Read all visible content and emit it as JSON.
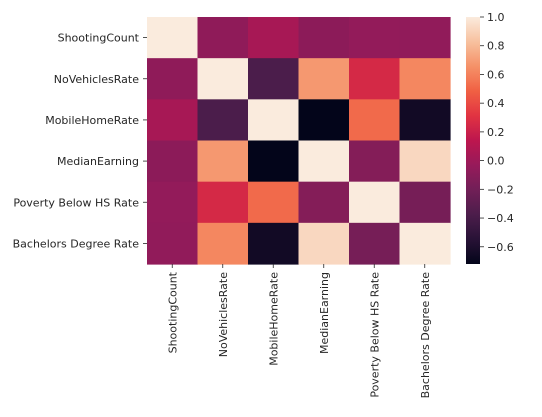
{
  "chart_data": {
    "type": "heatmap",
    "title": "",
    "xlabel": "",
    "ylabel": "",
    "rows": [
      "ShootingCount",
      "NoVehiclesRate",
      "MobileHomeRate",
      "MedianEarning",
      "Poverty Below HS Rate",
      "Bachelors Degree Rate"
    ],
    "columns": [
      "ShootingCount",
      "NoVehiclesRate",
      "MobileHomeRate",
      "MedianEarning",
      "Poverty Below HS Rate",
      "Bachelors Degree Rate"
    ],
    "values": [
      [
        1.0,
        -0.07,
        0.04,
        -0.08,
        -0.05,
        -0.06
      ],
      [
        -0.07,
        1.0,
        -0.38,
        0.68,
        0.25,
        0.62
      ],
      [
        0.04,
        -0.38,
        1.0,
        -0.72,
        0.52,
        -0.65
      ],
      [
        -0.08,
        0.68,
        -0.72,
        1.0,
        -0.12,
        0.92
      ],
      [
        -0.05,
        0.25,
        0.52,
        -0.12,
        1.0,
        -0.18
      ],
      [
        -0.06,
        0.62,
        -0.65,
        0.92,
        -0.18,
        1.0
      ]
    ],
    "colorbar": {
      "colormap": "rocket",
      "vmin": -0.72,
      "vmax": 1.0,
      "ticks": [
        1.0,
        0.8,
        0.6,
        0.4,
        0.2,
        0.0,
        -0.2,
        -0.4,
        -0.6
      ],
      "tick_labels": [
        "1.0",
        "0.8",
        "0.6",
        "0.4",
        "0.2",
        "0.0",
        "−0.2",
        "−0.4",
        "−0.6"
      ]
    },
    "grid": false
  }
}
